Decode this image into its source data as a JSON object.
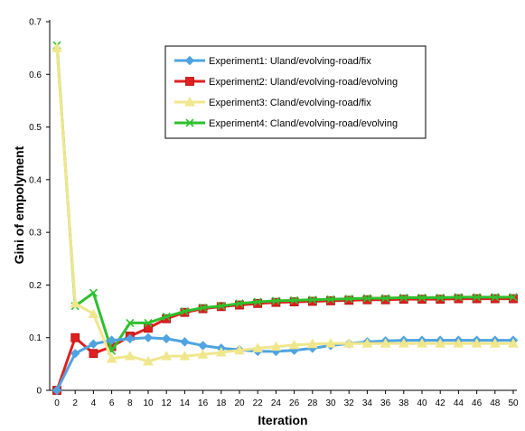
{
  "chart_data": {
    "type": "line",
    "title": "",
    "xlabel": "Iteration",
    "ylabel": "Gini of empolyment",
    "xlim": [
      0,
      50
    ],
    "ylim": [
      0,
      0.7
    ],
    "x": [
      0,
      2,
      4,
      6,
      8,
      10,
      12,
      14,
      16,
      18,
      20,
      22,
      24,
      26,
      28,
      30,
      32,
      34,
      36,
      38,
      40,
      42,
      44,
      46,
      48,
      50
    ],
    "x_tick_labels": [
      "0",
      "2",
      "4",
      "6",
      "8",
      "10",
      "12",
      "14",
      "16",
      "18",
      "20",
      "22",
      "24",
      "26",
      "28",
      "30",
      "32",
      "34",
      "36",
      "38",
      "40",
      "42",
      "44",
      "46",
      "48",
      "50"
    ],
    "y_tick_labels": [
      "0",
      "0.1",
      "0.2",
      "0.3",
      "0.4",
      "0.5",
      "0.6",
      "0.7"
    ],
    "y_ticks": [
      0,
      0.1,
      0.2,
      0.3,
      0.4,
      0.5,
      0.6,
      0.7
    ],
    "grid": false,
    "legend_position": "top-right",
    "series": [
      {
        "name": "Experiment1: Uland/evolving-road/fix",
        "color": "#4fa3e0",
        "marker": "diamond",
        "values": [
          0.0,
          0.07,
          0.088,
          0.095,
          0.098,
          0.1,
          0.098,
          0.092,
          0.085,
          0.08,
          0.077,
          0.074,
          0.074,
          0.076,
          0.08,
          0.085,
          0.089,
          0.092,
          0.094,
          0.095,
          0.095,
          0.095,
          0.095,
          0.095,
          0.095,
          0.095
        ]
      },
      {
        "name": "Experiment2: Uland/evolving-road/evolving",
        "color": "#e02020",
        "marker": "square",
        "values": [
          0.0,
          0.1,
          0.07,
          0.083,
          0.103,
          0.118,
          0.136,
          0.148,
          0.155,
          0.159,
          0.162,
          0.165,
          0.167,
          0.168,
          0.169,
          0.17,
          0.171,
          0.172,
          0.172,
          0.173,
          0.173,
          0.173,
          0.174,
          0.174,
          0.174,
          0.174
        ]
      },
      {
        "name": "Experiment3: Cland/evolving-road/fix",
        "color": "#f0e68c",
        "marker": "triangle",
        "values": [
          0.65,
          0.165,
          0.145,
          0.06,
          0.065,
          0.055,
          0.065,
          0.065,
          0.068,
          0.072,
          0.076,
          0.08,
          0.083,
          0.086,
          0.088,
          0.089,
          0.089,
          0.089,
          0.089,
          0.089,
          0.089,
          0.089,
          0.089,
          0.089,
          0.089,
          0.089
        ]
      },
      {
        "name": "Experiment4: Cland/evolving-road/evolving",
        "color": "#2ec02e",
        "marker": "x",
        "values": [
          0.655,
          0.16,
          0.185,
          0.075,
          0.128,
          0.128,
          0.14,
          0.15,
          0.157,
          0.16,
          0.165,
          0.168,
          0.17,
          0.171,
          0.172,
          0.173,
          0.174,
          0.175,
          0.175,
          0.176,
          0.176,
          0.176,
          0.177,
          0.177,
          0.177,
          0.177
        ]
      }
    ]
  }
}
